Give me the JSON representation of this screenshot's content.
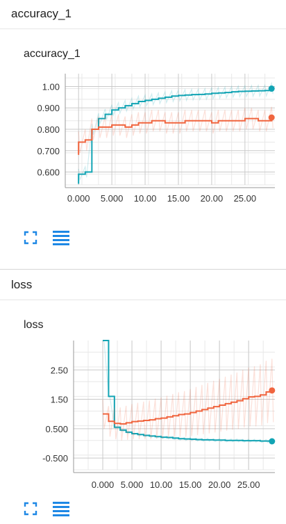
{
  "sections": [
    {
      "header": "accuracy_1",
      "card_title": "accuracy_1"
    },
    {
      "header": "loss",
      "card_title": "loss"
    }
  ],
  "icons": {
    "expand": "fullscreen-icon",
    "data": "data-list-icon"
  },
  "colors": {
    "series_a": "#12a4b4",
    "series_b": "#f0653f",
    "accent": "#1e88e5"
  },
  "chart_data": [
    {
      "type": "line",
      "title": "accuracy_1",
      "xlabel": "",
      "ylabel": "",
      "x_ticks": [
        "0.000",
        "5.000",
        "10.00",
        "15.00",
        "20.00",
        "25.00"
      ],
      "y_ticks": [
        "1.00",
        "0.900",
        "0.800",
        "0.700",
        "0.600"
      ],
      "xlim": [
        -2,
        29.5
      ],
      "ylim": [
        0.54,
        1.06
      ],
      "grid": true,
      "series": [
        {
          "color": "#12a4b4",
          "x": [
            0,
            1,
            2,
            3,
            4,
            5,
            6,
            7,
            8,
            9,
            10,
            11,
            12,
            13,
            14,
            15,
            16,
            17,
            18,
            19,
            20,
            21,
            22,
            23,
            24,
            25,
            26,
            27,
            28,
            29
          ],
          "y": [
            0.59,
            0.6,
            0.8,
            0.85,
            0.87,
            0.89,
            0.9,
            0.91,
            0.92,
            0.93,
            0.935,
            0.94,
            0.945,
            0.95,
            0.955,
            0.958,
            0.96,
            0.962,
            0.963,
            0.965,
            0.968,
            0.97,
            0.972,
            0.975,
            0.977,
            0.978,
            0.979,
            0.98,
            0.981,
            0.99
          ]
        },
        {
          "color": "#f0653f",
          "x": [
            0,
            1,
            2,
            3,
            4,
            5,
            6,
            7,
            8,
            9,
            10,
            11,
            12,
            13,
            14,
            15,
            16,
            17,
            18,
            19,
            20,
            21,
            22,
            23,
            24,
            25,
            26,
            27,
            28,
            29
          ],
          "y": [
            0.74,
            0.75,
            0.8,
            0.81,
            0.81,
            0.82,
            0.82,
            0.81,
            0.82,
            0.83,
            0.83,
            0.84,
            0.84,
            0.83,
            0.83,
            0.83,
            0.84,
            0.84,
            0.84,
            0.84,
            0.83,
            0.84,
            0.84,
            0.84,
            0.84,
            0.85,
            0.85,
            0.84,
            0.84,
            0.855
          ]
        }
      ]
    },
    {
      "type": "line",
      "title": "loss",
      "xlabel": "",
      "ylabel": "",
      "x_ticks": [
        "0.000",
        "5.000",
        "10.00",
        "15.00",
        "20.00",
        "25.00"
      ],
      "y_ticks": [
        "2.50",
        "1.50",
        "0.500",
        "-0.500"
      ],
      "xlim": [
        -5,
        29.5
      ],
      "ylim": [
        -0.9,
        3.5
      ],
      "grid": true,
      "series": [
        {
          "color": "#12a4b4",
          "x": [
            0,
            1,
            2,
            3,
            4,
            5,
            6,
            7,
            8,
            9,
            10,
            11,
            12,
            13,
            14,
            15,
            16,
            17,
            18,
            19,
            20,
            21,
            22,
            23,
            24,
            25,
            26,
            27,
            28,
            29
          ],
          "y": [
            3.5,
            1.6,
            0.55,
            0.45,
            0.38,
            0.33,
            0.3,
            0.27,
            0.25,
            0.23,
            0.21,
            0.2,
            0.18,
            0.16,
            0.15,
            0.14,
            0.13,
            0.12,
            0.12,
            0.11,
            0.11,
            0.1,
            0.1,
            0.1,
            0.09,
            0.09,
            0.09,
            0.08,
            0.08,
            0.07
          ]
        },
        {
          "color": "#f0653f",
          "x": [
            0,
            1,
            2,
            3,
            4,
            5,
            6,
            7,
            8,
            9,
            10,
            11,
            12,
            13,
            14,
            15,
            16,
            17,
            18,
            19,
            20,
            21,
            22,
            23,
            24,
            25,
            26,
            27,
            28,
            29
          ],
          "y": [
            1.0,
            0.75,
            0.68,
            0.66,
            0.7,
            0.74,
            0.76,
            0.78,
            0.8,
            0.84,
            0.86,
            0.9,
            0.94,
            0.98,
            1.0,
            1.05,
            1.1,
            1.15,
            1.2,
            1.25,
            1.3,
            1.35,
            1.4,
            1.45,
            1.52,
            1.58,
            1.6,
            1.65,
            1.75,
            1.8
          ]
        }
      ]
    }
  ]
}
